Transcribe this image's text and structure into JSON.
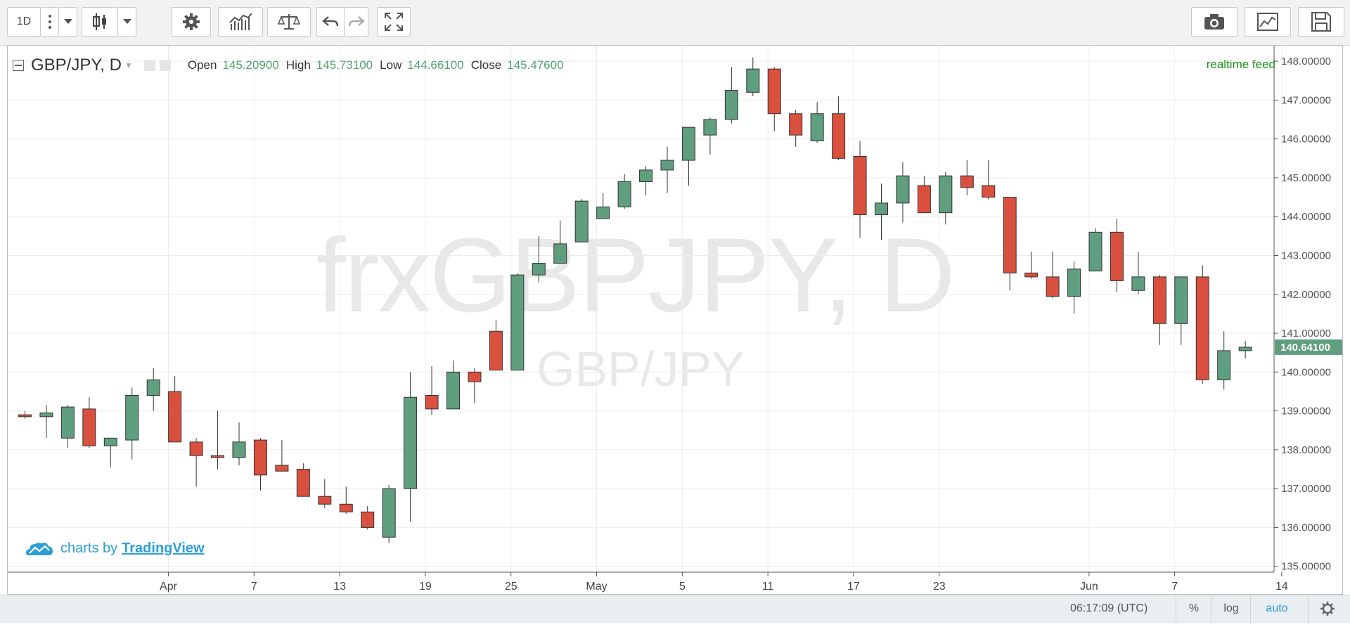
{
  "toolbar": {
    "interval_label": "1D",
    "icons": [
      "more-vert-icon",
      "dropdown-icon",
      "candlestick-icon",
      "dropdown-icon",
      "settings-gear-icon",
      "indicators-icon",
      "compare-scale-icon",
      "undo-icon",
      "redo-icon",
      "fullscreen-icon",
      "camera-icon",
      "chart-properties-icon",
      "save-icon"
    ]
  },
  "legend": {
    "symbol": "GBP/JPY, D",
    "open_label": "Open",
    "open_value": "145.20900",
    "high_label": "High",
    "high_value": "145.73100",
    "low_label": "Low",
    "low_value": "144.66100",
    "close_label": "Close",
    "close_value": "145.47600"
  },
  "realtime_feed": "realtime feed",
  "watermark": {
    "main": "frxGBPJPY, D",
    "sub": "GBP/JPY"
  },
  "branding": {
    "prefix": "charts by",
    "link": "TradingView"
  },
  "bottom_bar": {
    "time": "06:17:09 (UTC)",
    "percent": "%",
    "log": "log",
    "auto": "auto"
  },
  "colors": {
    "up": "#5f9e7f",
    "down": "#d9503f",
    "price_tag": "#5f9e7f"
  },
  "chart_data": {
    "type": "candlestick",
    "y_range": [
      134.85,
      148.4
    ],
    "y_ticks": [
      "148.00000",
      "147.00000",
      "146.00000",
      "145.00000",
      "144.00000",
      "143.00000",
      "142.00000",
      "141.00000",
      "140.00000",
      "139.00000",
      "138.00000",
      "137.00000",
      "136.00000",
      "135.00000"
    ],
    "y_tick_values": [
      148,
      147,
      146,
      145,
      144,
      143,
      142,
      141,
      140,
      139,
      138,
      137,
      136,
      135
    ],
    "x_labels": [
      {
        "i": 6.7,
        "text": "Apr"
      },
      {
        "i": 10.7,
        "text": "7"
      },
      {
        "i": 14.7,
        "text": "13"
      },
      {
        "i": 18.7,
        "text": "19"
      },
      {
        "i": 22.7,
        "text": "25"
      },
      {
        "i": 26.7,
        "text": "May"
      },
      {
        "i": 30.7,
        "text": "5"
      },
      {
        "i": 34.7,
        "text": "11"
      },
      {
        "i": 38.7,
        "text": "17"
      },
      {
        "i": 42.7,
        "text": "23"
      },
      {
        "i": 49.7,
        "text": "Jun"
      },
      {
        "i": 53.7,
        "text": "7"
      },
      {
        "i": 58.7,
        "text": "14"
      }
    ],
    "last_price": "140.64100",
    "last_price_value": 140.641,
    "candles": [
      {
        "o": 138.9,
        "h": 139.0,
        "l": 138.8,
        "c": 138.85
      },
      {
        "o": 138.85,
        "h": 139.15,
        "l": 138.3,
        "c": 138.95
      },
      {
        "o": 138.3,
        "h": 139.15,
        "l": 138.05,
        "c": 139.1
      },
      {
        "o": 139.05,
        "h": 139.35,
        "l": 138.05,
        "c": 138.1
      },
      {
        "o": 138.1,
        "h": 138.3,
        "l": 137.55,
        "c": 138.3
      },
      {
        "o": 138.25,
        "h": 139.6,
        "l": 137.75,
        "c": 139.4
      },
      {
        "o": 139.4,
        "h": 140.1,
        "l": 139.0,
        "c": 139.8
      },
      {
        "o": 139.5,
        "h": 139.9,
        "l": 138.2,
        "c": 138.2
      },
      {
        "o": 138.2,
        "h": 138.3,
        "l": 137.05,
        "c": 137.85
      },
      {
        "o": 137.85,
        "h": 139.0,
        "l": 137.5,
        "c": 137.8
      },
      {
        "o": 137.8,
        "h": 138.7,
        "l": 137.6,
        "c": 138.2
      },
      {
        "o": 138.25,
        "h": 138.3,
        "l": 136.95,
        "c": 137.35
      },
      {
        "o": 137.6,
        "h": 138.25,
        "l": 137.45,
        "c": 137.45
      },
      {
        "o": 137.5,
        "h": 137.65,
        "l": 136.8,
        "c": 136.8
      },
      {
        "o": 136.8,
        "h": 137.25,
        "l": 136.5,
        "c": 136.6
      },
      {
        "o": 136.6,
        "h": 137.05,
        "l": 136.35,
        "c": 136.4
      },
      {
        "o": 136.4,
        "h": 136.55,
        "l": 135.95,
        "c": 136.0
      },
      {
        "o": 135.75,
        "h": 137.1,
        "l": 135.6,
        "c": 137.0
      },
      {
        "o": 137.0,
        "h": 140.0,
        "l": 136.15,
        "c": 139.35
      },
      {
        "o": 139.4,
        "h": 140.15,
        "l": 138.9,
        "c": 139.05
      },
      {
        "o": 139.05,
        "h": 140.3,
        "l": 139.05,
        "c": 140.0
      },
      {
        "o": 140.0,
        "h": 140.1,
        "l": 139.2,
        "c": 139.75
      },
      {
        "o": 141.05,
        "h": 141.35,
        "l": 140.05,
        "c": 140.05
      },
      {
        "o": 140.05,
        "h": 142.55,
        "l": 140.05,
        "c": 142.5
      },
      {
        "o": 142.5,
        "h": 143.5,
        "l": 142.3,
        "c": 142.8
      },
      {
        "o": 142.8,
        "h": 143.9,
        "l": 142.8,
        "c": 143.3
      },
      {
        "o": 143.35,
        "h": 144.45,
        "l": 143.35,
        "c": 144.4
      },
      {
        "o": 143.95,
        "h": 144.6,
        "l": 143.95,
        "c": 144.25
      },
      {
        "o": 144.25,
        "h": 145.1,
        "l": 144.2,
        "c": 144.9
      },
      {
        "o": 144.9,
        "h": 145.3,
        "l": 144.55,
        "c": 145.2
      },
      {
        "o": 145.2,
        "h": 145.8,
        "l": 144.6,
        "c": 145.45
      },
      {
        "o": 145.45,
        "h": 146.3,
        "l": 144.8,
        "c": 146.3
      },
      {
        "o": 146.1,
        "h": 146.55,
        "l": 145.6,
        "c": 146.5
      },
      {
        "o": 146.5,
        "h": 147.85,
        "l": 146.4,
        "c": 147.25
      },
      {
        "o": 147.2,
        "h": 148.1,
        "l": 147.1,
        "c": 147.8
      },
      {
        "o": 147.8,
        "h": 147.85,
        "l": 146.2,
        "c": 146.65
      },
      {
        "o": 146.65,
        "h": 146.75,
        "l": 145.8,
        "c": 146.1
      },
      {
        "o": 145.95,
        "h": 146.95,
        "l": 145.9,
        "c": 146.65
      },
      {
        "o": 146.65,
        "h": 147.1,
        "l": 145.45,
        "c": 145.5
      },
      {
        "o": 145.55,
        "h": 145.95,
        "l": 143.45,
        "c": 144.05
      },
      {
        "o": 144.05,
        "h": 144.85,
        "l": 143.4,
        "c": 144.35
      },
      {
        "o": 144.35,
        "h": 145.4,
        "l": 143.85,
        "c": 145.05
      },
      {
        "o": 144.8,
        "h": 145.05,
        "l": 144.1,
        "c": 144.1
      },
      {
        "o": 144.1,
        "h": 145.15,
        "l": 143.8,
        "c": 145.05
      },
      {
        "o": 145.05,
        "h": 145.45,
        "l": 144.55,
        "c": 144.75
      },
      {
        "o": 144.8,
        "h": 145.45,
        "l": 144.45,
        "c": 144.5
      },
      {
        "o": 144.5,
        "h": 144.5,
        "l": 142.1,
        "c": 142.55
      },
      {
        "o": 142.55,
        "h": 143.1,
        "l": 142.4,
        "c": 142.45
      },
      {
        "o": 142.45,
        "h": 143.1,
        "l": 141.9,
        "c": 141.95
      },
      {
        "o": 141.95,
        "h": 142.85,
        "l": 141.5,
        "c": 142.65
      },
      {
        "o": 142.6,
        "h": 143.7,
        "l": 142.6,
        "c": 143.6
      },
      {
        "o": 143.6,
        "h": 143.95,
        "l": 142.05,
        "c": 142.35
      },
      {
        "o": 142.1,
        "h": 143.1,
        "l": 142.0,
        "c": 142.45
      },
      {
        "o": 142.45,
        "h": 142.5,
        "l": 140.7,
        "c": 141.25
      },
      {
        "o": 141.25,
        "h": 142.45,
        "l": 140.7,
        "c": 142.45
      },
      {
        "o": 142.45,
        "h": 142.75,
        "l": 139.7,
        "c": 139.8
      },
      {
        "o": 139.8,
        "h": 141.05,
        "l": 139.55,
        "c": 140.55
      },
      {
        "o": 140.55,
        "h": 140.8,
        "l": 140.35,
        "c": 140.64
      }
    ]
  }
}
